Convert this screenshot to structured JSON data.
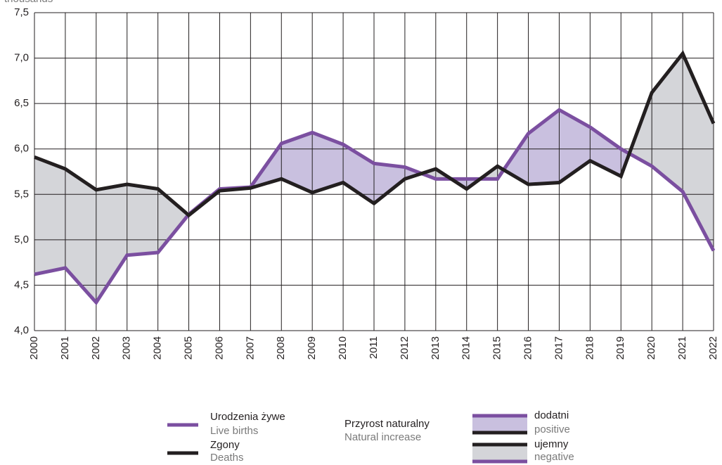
{
  "chart_data": {
    "type": "line",
    "ylabel": "thousands",
    "categories": [
      "2000",
      "2001",
      "2002",
      "2003",
      "2004",
      "2005",
      "2006",
      "2007",
      "2008",
      "2009",
      "2010",
      "2011",
      "2012",
      "2013",
      "2014",
      "2015",
      "2016",
      "2017",
      "2018",
      "2019",
      "2020",
      "2021",
      "2022"
    ],
    "series": [
      {
        "name": "Urodzenia żywe",
        "name_en": "Live births",
        "color": "#7b4fa0",
        "values": [
          4.62,
          4.69,
          4.31,
          4.83,
          4.86,
          5.28,
          5.56,
          5.58,
          6.06,
          6.18,
          6.05,
          5.84,
          5.8,
          5.67,
          5.67,
          5.67,
          6.17,
          6.43,
          6.24,
          6.0,
          5.81,
          5.53,
          4.88
        ]
      },
      {
        "name": "Zgony",
        "name_en": "Deaths",
        "color": "#231f20",
        "values": [
          5.91,
          5.78,
          5.55,
          5.61,
          5.56,
          5.27,
          5.54,
          5.57,
          5.67,
          5.52,
          5.63,
          5.4,
          5.67,
          5.78,
          5.56,
          5.81,
          5.61,
          5.63,
          5.87,
          5.7,
          6.62,
          7.05,
          6.28
        ]
      }
    ],
    "ylim": [
      4.0,
      7.5
    ],
    "yticks": [
      {
        "value": 4.0,
        "label": "4,0"
      },
      {
        "value": 4.5,
        "label": "4,5"
      },
      {
        "value": 5.0,
        "label": "5,0"
      },
      {
        "value": 5.5,
        "label": "5,5"
      },
      {
        "value": 6.0,
        "label": "6,0"
      },
      {
        "value": 6.5,
        "label": "6,5"
      },
      {
        "value": 7.0,
        "label": "7,0"
      },
      {
        "value": 7.5,
        "label": "7,5"
      }
    ],
    "grid": true,
    "increase": {
      "title": "Przyrost naturalny",
      "title_en": "Natural increase",
      "positive": {
        "label": "dodatni",
        "label_en": "positive",
        "color": "#c9c0df"
      },
      "negative": {
        "label": "ujemny",
        "label_en": "negative",
        "color": "#d4d5d9"
      }
    }
  }
}
